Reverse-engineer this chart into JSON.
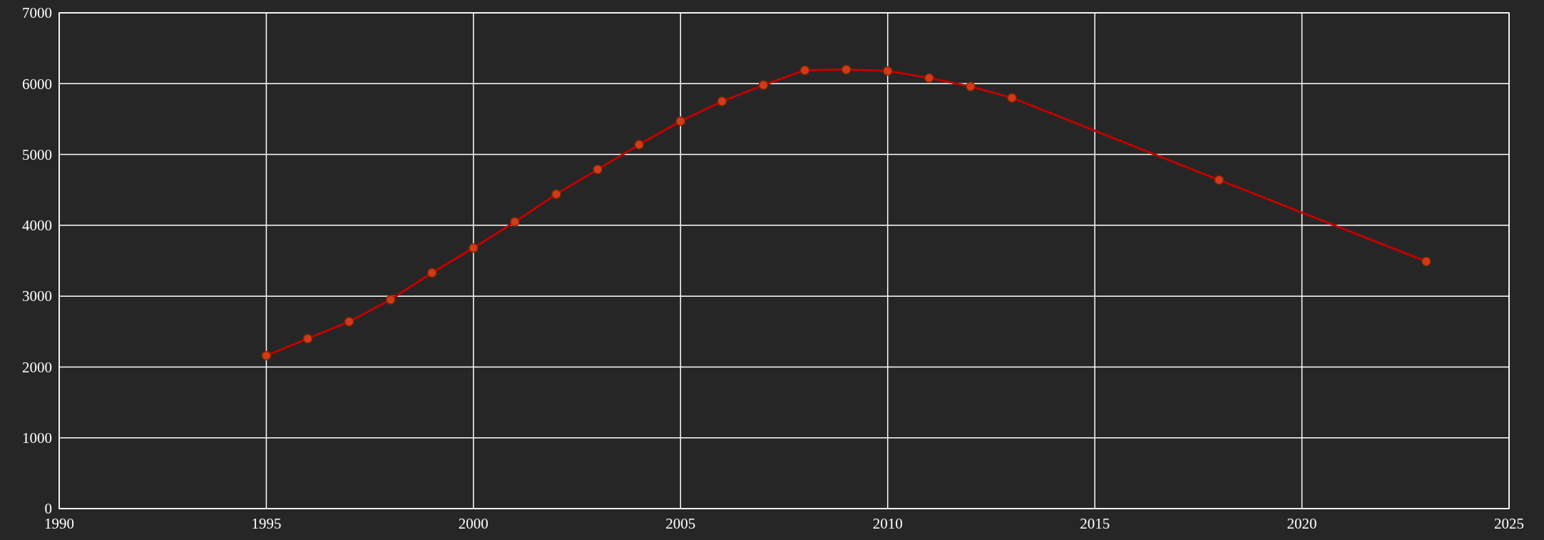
{
  "chart_data": {
    "type": "line",
    "x": [
      1995,
      1996,
      1997,
      1998,
      1999,
      2000,
      2001,
      2002,
      2003,
      2004,
      2005,
      2006,
      2007,
      2008,
      2009,
      2010,
      2011,
      2012,
      2013,
      2018,
      2023
    ],
    "series": [
      {
        "color": "#c00000",
        "values": [
          2160,
          2400,
          2640,
          2950,
          3330,
          3680,
          4050,
          4440,
          4790,
          5140,
          5470,
          5750,
          5980,
          6190,
          6200,
          6180,
          6080,
          5960,
          5800,
          4640,
          3490
        ]
      }
    ],
    "xlim": [
      1990,
      2025
    ],
    "xticks": [
      1990,
      1995,
      2000,
      2005,
      2010,
      2015,
      2020,
      2025
    ],
    "ylim": [
      0,
      7000
    ],
    "yticks": [
      0,
      1000,
      2000,
      3000,
      4000,
      5000,
      6000,
      7000
    ],
    "grid": true,
    "marker": "circle",
    "line_style": "solid"
  }
}
